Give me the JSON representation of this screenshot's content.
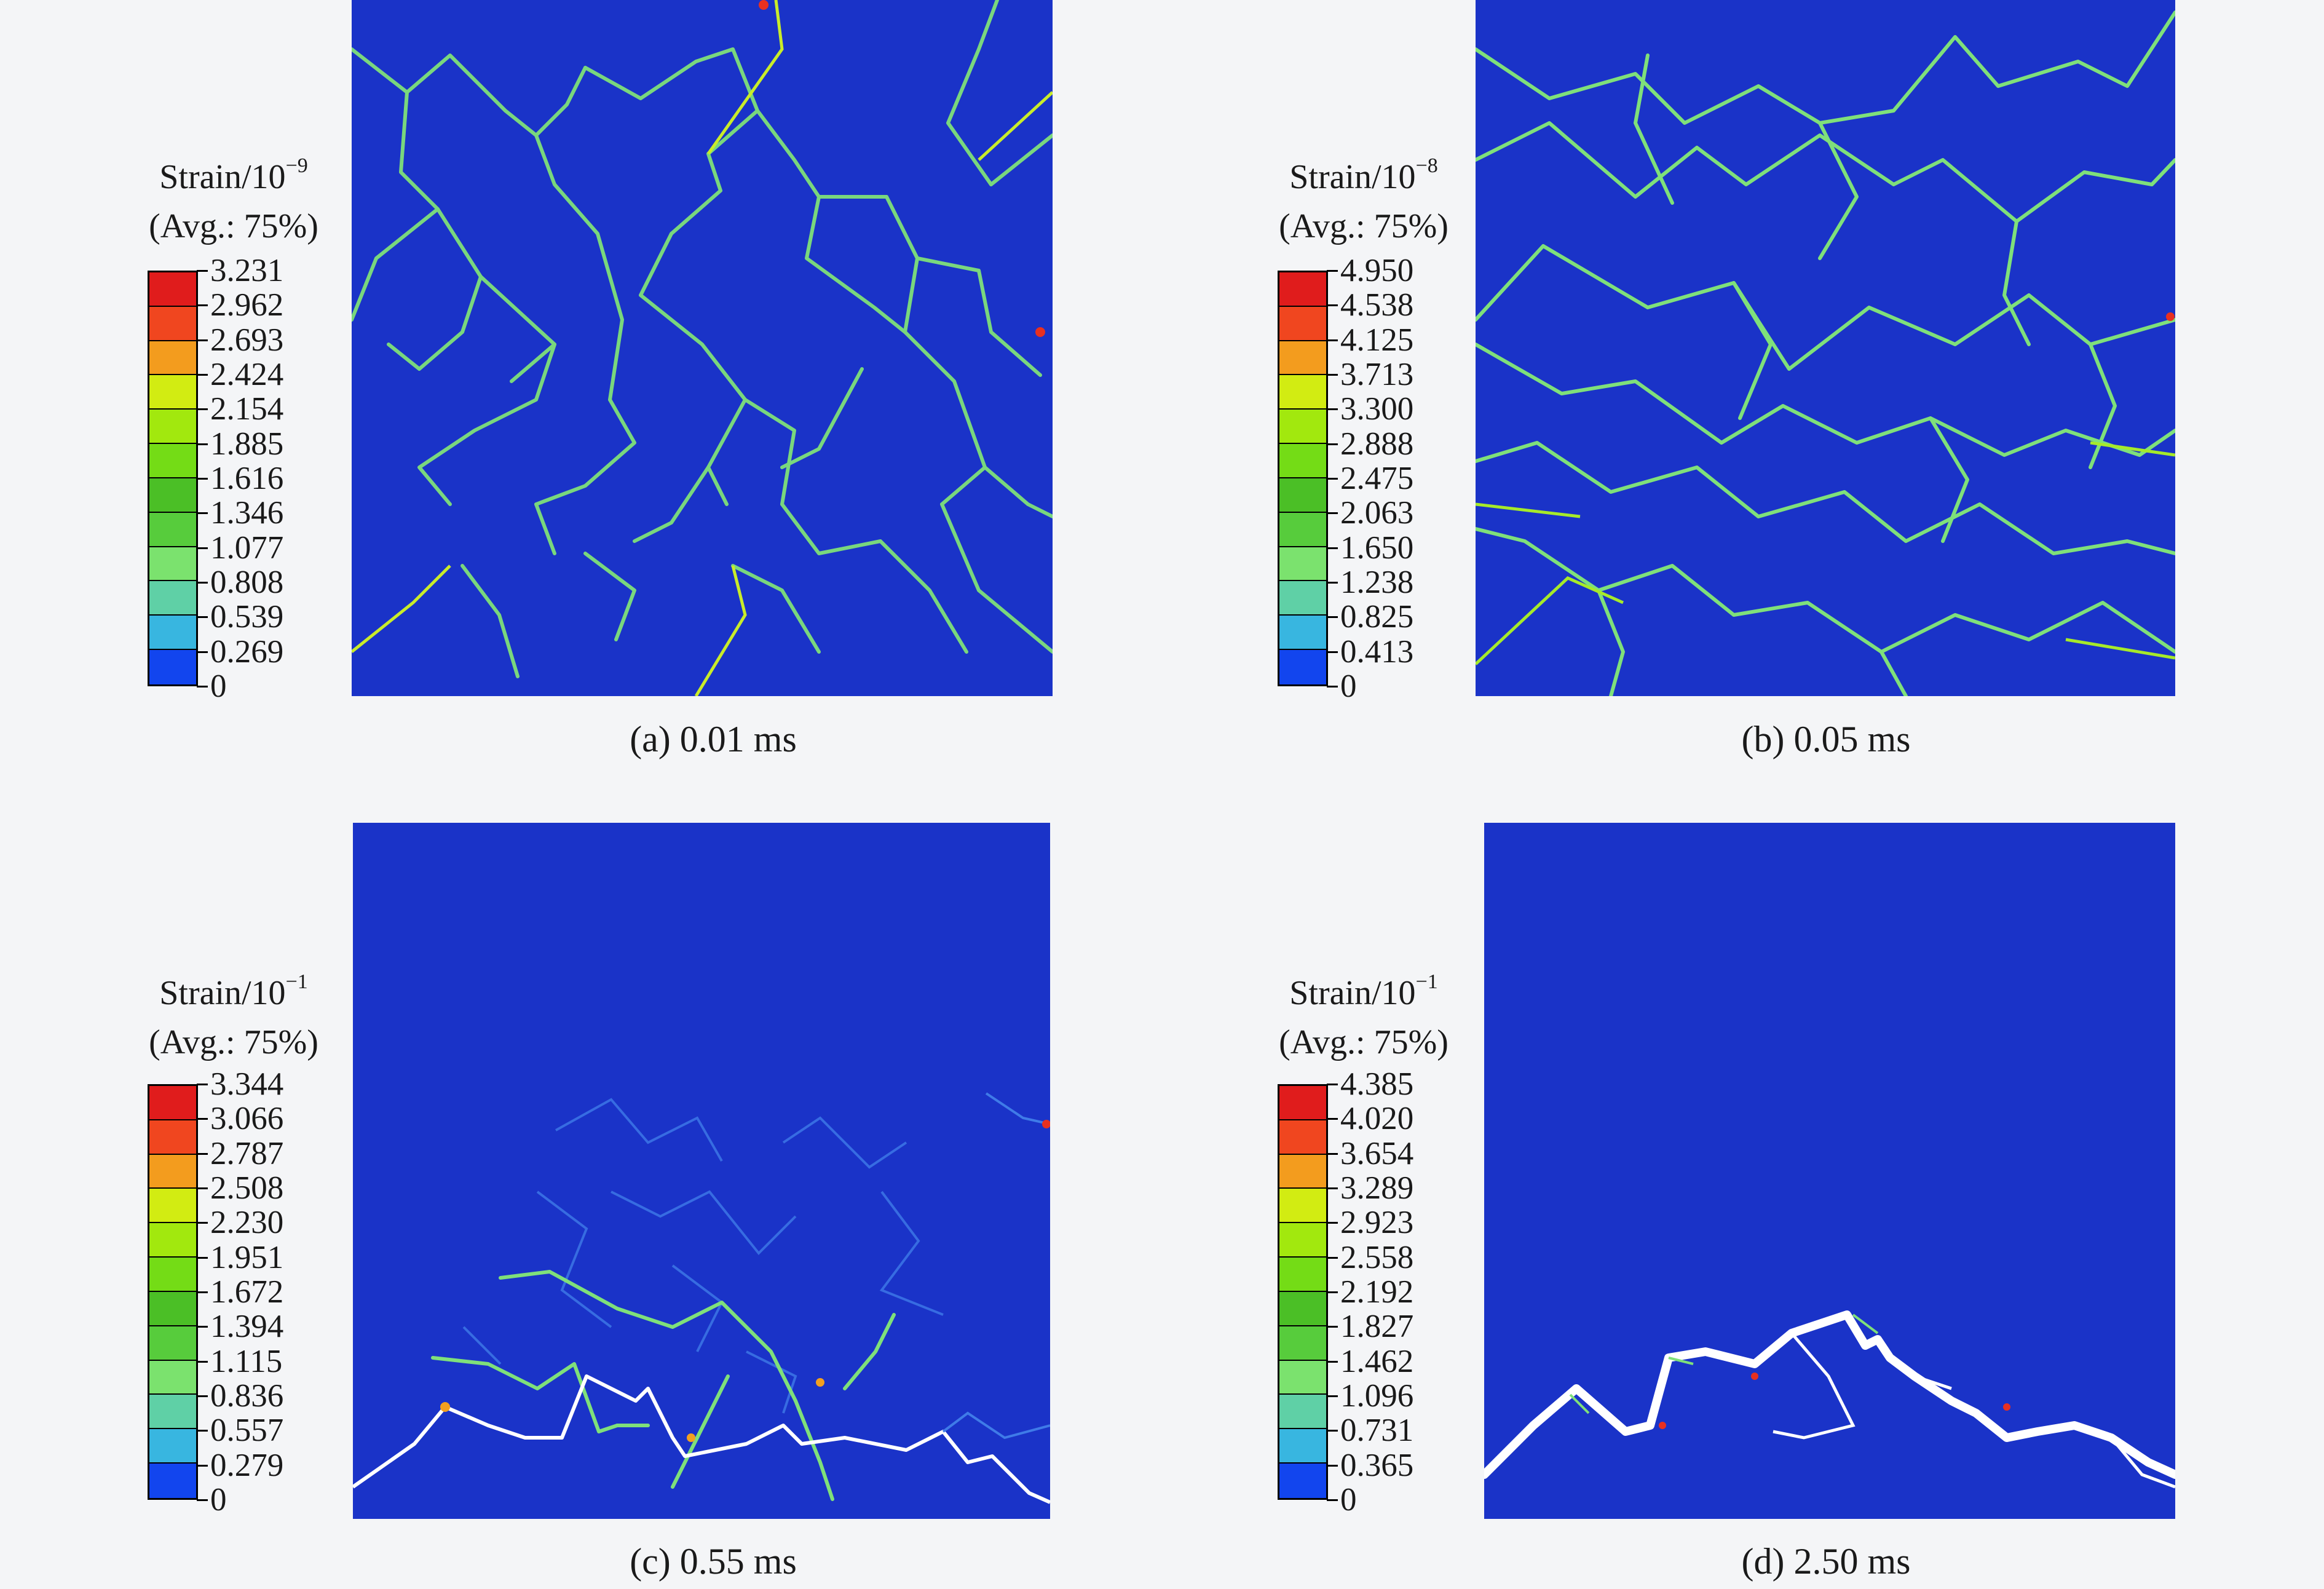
{
  "colors": {
    "plot_background": "#1a33c8",
    "scale": [
      "#1030b8",
      "#1245ee",
      "#38b6e0",
      "#5fd0a6",
      "#7be26e",
      "#57cc3c",
      "#4bbf26",
      "#74dc16",
      "#a2e80e",
      "#d2ec12",
      "#f39c1e",
      "#f0461f",
      "#e01c1c"
    ],
    "crack": "#ffffff"
  },
  "panels": [
    {
      "id": "a",
      "legend_title_line1": "Strain/10",
      "legend_exponent": "−9",
      "legend_title_line2": "(Avg.: 75%)",
      "ticks": [
        "3.231",
        "2.962",
        "2.693",
        "2.424",
        "2.154",
        "1.885",
        "1.616",
        "1.346",
        "1.077",
        "0.808",
        "0.539",
        "0.269",
        "0"
      ],
      "caption": "(a) 0.01 ms"
    },
    {
      "id": "b",
      "legend_title_line1": "Strain/10",
      "legend_exponent": "−8",
      "legend_title_line2": "(Avg.: 75%)",
      "ticks": [
        "4.950",
        "4.538",
        "4.125",
        "3.713",
        "3.300",
        "2.888",
        "2.475",
        "2.063",
        "1.650",
        "1.238",
        "0.825",
        "0.413",
        "0"
      ],
      "caption": "(b) 0.05 ms"
    },
    {
      "id": "c",
      "legend_title_line1": "Strain/10",
      "legend_exponent": "−1",
      "legend_title_line2": "(Avg.: 75%)",
      "ticks": [
        "3.344",
        "3.066",
        "2.787",
        "2.508",
        "2.230",
        "1.951",
        "1.672",
        "1.394",
        "1.115",
        "0.836",
        "0.557",
        "0.279",
        "0"
      ],
      "caption": "(c) 0.55 ms"
    },
    {
      "id": "d",
      "legend_title_line1": "Strain/10",
      "legend_exponent": "−1",
      "legend_title_line2": "(Avg.: 75%)",
      "ticks": [
        "4.385",
        "4.020",
        "3.654",
        "3.289",
        "2.923",
        "2.558",
        "2.192",
        "1.827",
        "1.462",
        "1.096",
        "0.731",
        "0.365",
        "0"
      ],
      "caption": "(d) 2.50 ms"
    }
  ]
}
